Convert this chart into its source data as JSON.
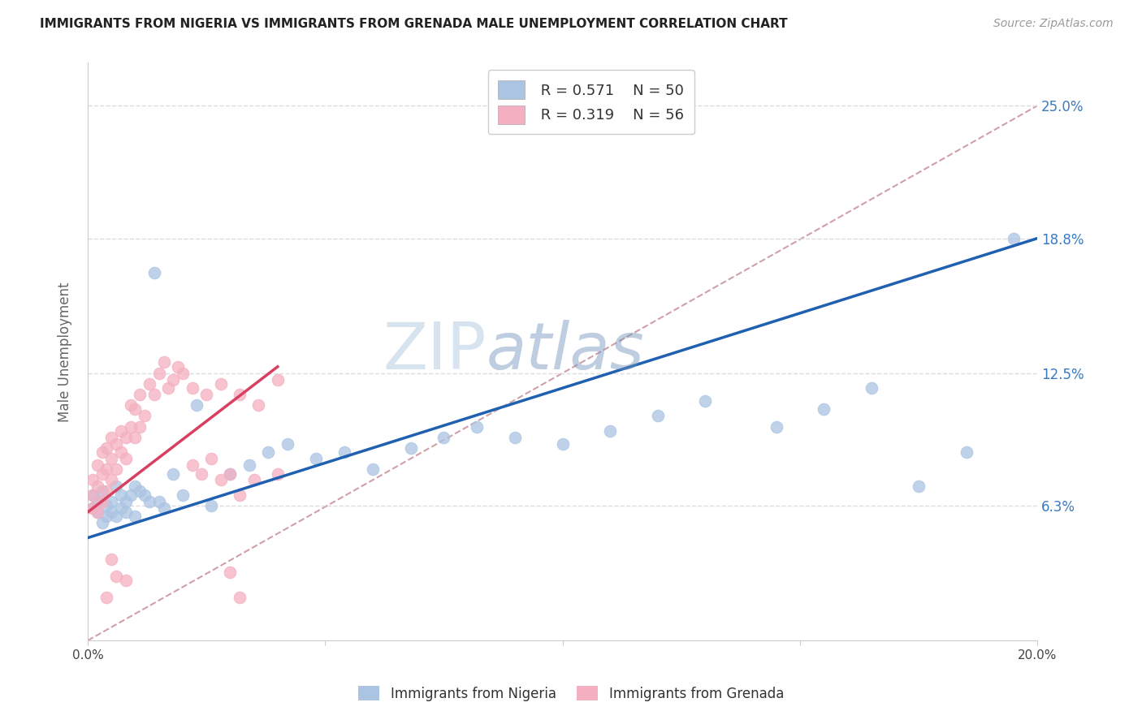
{
  "title": "IMMIGRANTS FROM NIGERIA VS IMMIGRANTS FROM GRENADA MALE UNEMPLOYMENT CORRELATION CHART",
  "source": "Source: ZipAtlas.com",
  "ylabel": "Male Unemployment",
  "xlim": [
    0,
    0.2
  ],
  "ylim": [
    0.0,
    0.27
  ],
  "yticks": [
    0.063,
    0.125,
    0.188,
    0.25
  ],
  "ytick_labels": [
    "6.3%",
    "12.5%",
    "18.8%",
    "25.0%"
  ],
  "xticks": [
    0.0,
    0.05,
    0.1,
    0.15,
    0.2
  ],
  "xtick_labels": [
    "0.0%",
    "",
    "",
    "",
    "20.0%"
  ],
  "nigeria_R": 0.571,
  "nigeria_N": 50,
  "grenada_R": 0.319,
  "grenada_N": 56,
  "nigeria_color": "#aac4e2",
  "grenada_color": "#f4afc0",
  "nigeria_line_color": "#2060b0",
  "grenada_line_color": "#d84060",
  "ref_line_color": "#d0a0a8",
  "background_color": "#ffffff",
  "grid_color": "#dddddd",
  "nigeria_x": [
    0.001,
    0.001,
    0.002,
    0.002,
    0.003,
    0.003,
    0.004,
    0.004,
    0.005,
    0.005,
    0.006,
    0.006,
    0.007,
    0.007,
    0.008,
    0.008,
    0.009,
    0.01,
    0.01,
    0.011,
    0.012,
    0.013,
    0.014,
    0.015,
    0.016,
    0.018,
    0.02,
    0.023,
    0.026,
    0.03,
    0.034,
    0.038,
    0.042,
    0.048,
    0.054,
    0.06,
    0.068,
    0.075,
    0.082,
    0.09,
    0.1,
    0.11,
    0.12,
    0.13,
    0.145,
    0.155,
    0.165,
    0.175,
    0.185,
    0.195
  ],
  "nigeria_y": [
    0.062,
    0.068,
    0.06,
    0.065,
    0.055,
    0.07,
    0.058,
    0.063,
    0.06,
    0.065,
    0.058,
    0.072,
    0.062,
    0.068,
    0.065,
    0.06,
    0.068,
    0.072,
    0.058,
    0.07,
    0.068,
    0.065,
    0.172,
    0.065,
    0.062,
    0.078,
    0.068,
    0.11,
    0.063,
    0.078,
    0.082,
    0.088,
    0.092,
    0.085,
    0.088,
    0.08,
    0.09,
    0.095,
    0.1,
    0.095,
    0.092,
    0.098,
    0.105,
    0.112,
    0.1,
    0.108,
    0.118,
    0.072,
    0.088,
    0.188
  ],
  "grenada_x": [
    0.001,
    0.001,
    0.001,
    0.002,
    0.002,
    0.002,
    0.003,
    0.003,
    0.003,
    0.004,
    0.004,
    0.004,
    0.005,
    0.005,
    0.005,
    0.006,
    0.006,
    0.007,
    0.007,
    0.008,
    0.008,
    0.009,
    0.009,
    0.01,
    0.01,
    0.011,
    0.011,
    0.012,
    0.013,
    0.014,
    0.015,
    0.016,
    0.017,
    0.018,
    0.019,
    0.02,
    0.022,
    0.025,
    0.028,
    0.032,
    0.036,
    0.04,
    0.03,
    0.032,
    0.022,
    0.024,
    0.026,
    0.028,
    0.035,
    0.04,
    0.005,
    0.006,
    0.008,
    0.004,
    0.03,
    0.032
  ],
  "grenada_y": [
    0.062,
    0.068,
    0.075,
    0.06,
    0.072,
    0.082,
    0.065,
    0.078,
    0.088,
    0.07,
    0.08,
    0.09,
    0.075,
    0.085,
    0.095,
    0.08,
    0.092,
    0.088,
    0.098,
    0.085,
    0.095,
    0.1,
    0.11,
    0.095,
    0.108,
    0.1,
    0.115,
    0.105,
    0.12,
    0.115,
    0.125,
    0.13,
    0.118,
    0.122,
    0.128,
    0.125,
    0.118,
    0.115,
    0.12,
    0.115,
    0.11,
    0.122,
    0.078,
    0.068,
    0.082,
    0.078,
    0.085,
    0.075,
    0.075,
    0.078,
    0.038,
    0.03,
    0.028,
    0.02,
    0.032,
    0.02
  ],
  "nigeria_line_x": [
    0.0,
    0.2
  ],
  "nigeria_line_y": [
    0.048,
    0.188
  ],
  "grenada_line_x": [
    0.0,
    0.04
  ],
  "grenada_line_y": [
    0.06,
    0.128
  ],
  "ref_line_x": [
    0.0,
    0.2
  ],
  "ref_line_y": [
    0.0,
    0.25
  ],
  "watermark_zip": "ZIP",
  "watermark_atlas": "atlas"
}
